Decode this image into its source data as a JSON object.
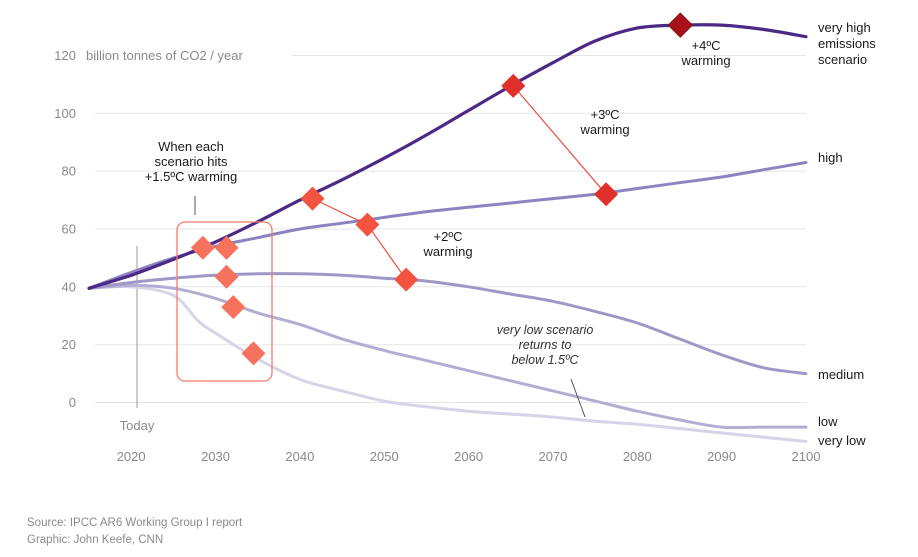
{
  "chart_data": {
    "type": "line",
    "unit_label": "billion tonnes of CO2 / year",
    "x_ticks": [
      "2020",
      "2030",
      "2040",
      "2050",
      "2060",
      "2070",
      "2080",
      "2090",
      "2100"
    ],
    "y_ticks": [
      "0",
      "20",
      "40",
      "60",
      "80",
      "100",
      "120"
    ],
    "xlim": [
      2015,
      2100
    ],
    "ylim": [
      -14,
      132
    ],
    "grid": true,
    "colors": {
      "very_high": "#4b2a86",
      "high": "#8c84c0",
      "medium": "#9f98c7",
      "low": "#b2aed3",
      "very_low": "#d6d4e7",
      "marker_15": "#f7725c",
      "marker_2": "#f4543f",
      "marker_3": "#e0302b",
      "marker_4": "#a6111a",
      "callout_box": "#f27c6b"
    },
    "series": [
      {
        "name_lines": [
          "very high",
          "emissions",
          "scenario"
        ],
        "key": "very_high",
        "points": [
          [
            2015,
            39.5
          ],
          [
            2020,
            44
          ],
          [
            2025,
            49.5
          ],
          [
            2030,
            55.5
          ],
          [
            2035,
            62.5
          ],
          [
            2040,
            70
          ],
          [
            2045,
            77
          ],
          [
            2050,
            84.5
          ],
          [
            2055,
            92.5
          ],
          [
            2060,
            101
          ],
          [
            2065,
            109.5
          ],
          [
            2070,
            117.5
          ],
          [
            2075,
            125
          ],
          [
            2080,
            129.5
          ],
          [
            2085,
            130.5
          ],
          [
            2090,
            130.5
          ],
          [
            2095,
            129
          ],
          [
            2100,
            126.5
          ]
        ]
      },
      {
        "name_lines": [
          "high"
        ],
        "key": "high",
        "points": [
          [
            2015,
            39.5
          ],
          [
            2020,
            45
          ],
          [
            2025,
            50
          ],
          [
            2030,
            54
          ],
          [
            2035,
            57
          ],
          [
            2040,
            60
          ],
          [
            2045,
            62
          ],
          [
            2050,
            64
          ],
          [
            2055,
            66
          ],
          [
            2060,
            67.5
          ],
          [
            2065,
            69
          ],
          [
            2070,
            70.5
          ],
          [
            2075,
            72
          ],
          [
            2080,
            74
          ],
          [
            2085,
            76
          ],
          [
            2090,
            78
          ],
          [
            2095,
            80.5
          ],
          [
            2100,
            83
          ]
        ]
      },
      {
        "name_lines": [
          "medium"
        ],
        "key": "medium",
        "points": [
          [
            2015,
            39.5
          ],
          [
            2020,
            41.5
          ],
          [
            2025,
            43
          ],
          [
            2030,
            44
          ],
          [
            2035,
            44.5
          ],
          [
            2040,
            44.5
          ],
          [
            2045,
            44
          ],
          [
            2050,
            43
          ],
          [
            2055,
            42
          ],
          [
            2060,
            40
          ],
          [
            2065,
            37.5
          ],
          [
            2070,
            35
          ],
          [
            2075,
            31.5
          ],
          [
            2080,
            27.5
          ],
          [
            2085,
            22
          ],
          [
            2090,
            16.5
          ],
          [
            2095,
            12
          ],
          [
            2100,
            10
          ]
        ]
      },
      {
        "name_lines": [
          "low"
        ],
        "key": "low",
        "points": [
          [
            2015,
            39.5
          ],
          [
            2020,
            40.5
          ],
          [
            2025,
            39.5
          ],
          [
            2030,
            36
          ],
          [
            2035,
            31
          ],
          [
            2040,
            27
          ],
          [
            2045,
            22
          ],
          [
            2050,
            18
          ],
          [
            2055,
            14.5
          ],
          [
            2060,
            11
          ],
          [
            2065,
            7.5
          ],
          [
            2070,
            4
          ],
          [
            2075,
            0.5
          ],
          [
            2080,
            -3
          ],
          [
            2085,
            -6
          ],
          [
            2090,
            -8.5
          ],
          [
            2095,
            -8.5
          ],
          [
            2100,
            -8.5
          ]
        ]
      },
      {
        "name_lines": [
          "very low"
        ],
        "key": "very_low",
        "points": [
          [
            2015,
            39.5
          ],
          [
            2020,
            40
          ],
          [
            2025,
            37
          ],
          [
            2028,
            28
          ],
          [
            2030,
            24
          ],
          [
            2035,
            15
          ],
          [
            2040,
            8
          ],
          [
            2045,
            4
          ],
          [
            2050,
            0.5
          ],
          [
            2055,
            -1.5
          ],
          [
            2060,
            -3
          ],
          [
            2065,
            -4
          ],
          [
            2070,
            -5
          ],
          [
            2075,
            -6.5
          ],
          [
            2080,
            -7.5
          ],
          [
            2085,
            -9
          ],
          [
            2090,
            -10.5
          ],
          [
            2095,
            -12
          ],
          [
            2100,
            -13.5
          ]
        ]
      }
    ],
    "markers": [
      {
        "level": "1.5",
        "x": 2028.5,
        "y": 53.5
      },
      {
        "level": "1.5",
        "x": 2031.3,
        "y": 53.5
      },
      {
        "level": "1.5",
        "x": 2031.3,
        "y": 43.5
      },
      {
        "level": "1.5",
        "x": 2032.1,
        "y": 33
      },
      {
        "level": "1.5",
        "x": 2034.5,
        "y": 17
      },
      {
        "level": "2",
        "x": 2041.5,
        "y": 70.5
      },
      {
        "level": "2",
        "x": 2048.0,
        "y": 61.5
      },
      {
        "level": "2",
        "x": 2052.6,
        "y": 42.5
      },
      {
        "level": "3",
        "x": 2065.3,
        "y": 109.5
      },
      {
        "level": "3",
        "x": 2076.3,
        "y": 72
      },
      {
        "level": "4",
        "x": 2085.1,
        "y": 130.5
      }
    ],
    "connectors": [
      {
        "from": 5,
        "to": 6
      },
      {
        "from": 6,
        "to": 7
      },
      {
        "from": 8,
        "to": 9
      }
    ],
    "annotations": {
      "callout_15": [
        "When each",
        "scenario hits",
        "+1.5ºC warming"
      ],
      "warming_2": [
        "+2ºC",
        "warming"
      ],
      "warming_3": [
        "+3ºC",
        "warming"
      ],
      "warming_4": [
        "+4ºC",
        "warming"
      ],
      "very_low_note": [
        "very low scenario",
        "returns to",
        "below 1.5ºC"
      ],
      "today": "Today"
    }
  },
  "footer": {
    "source": "Source: IPCC AR6 Working Group I report",
    "graphic": "Graphic: John Keefe, CNN"
  }
}
